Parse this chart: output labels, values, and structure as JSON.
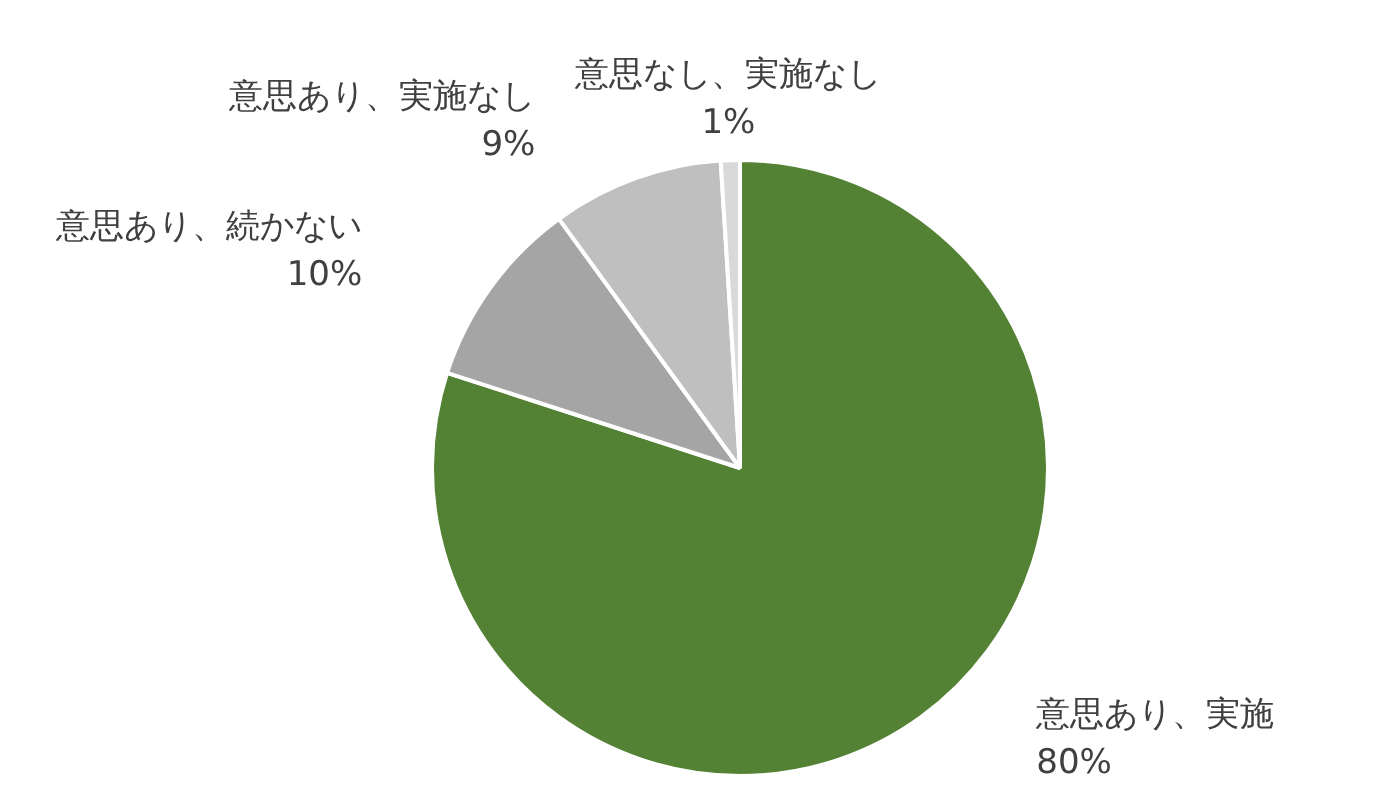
{
  "chart_data": {
    "type": "pie",
    "categories": [
      "意思あり、実施",
      "意思あり、続かない",
      "意思あり、実施なし",
      "意思なし、実施なし"
    ],
    "values": [
      80,
      10,
      9,
      1
    ],
    "colors": [
      "#548235",
      "#a5a5a5",
      "#bfbfbf",
      "#d9d9d9"
    ],
    "value_labels": [
      "80%",
      "10%",
      "9%",
      "1%"
    ],
    "legend": false
  }
}
